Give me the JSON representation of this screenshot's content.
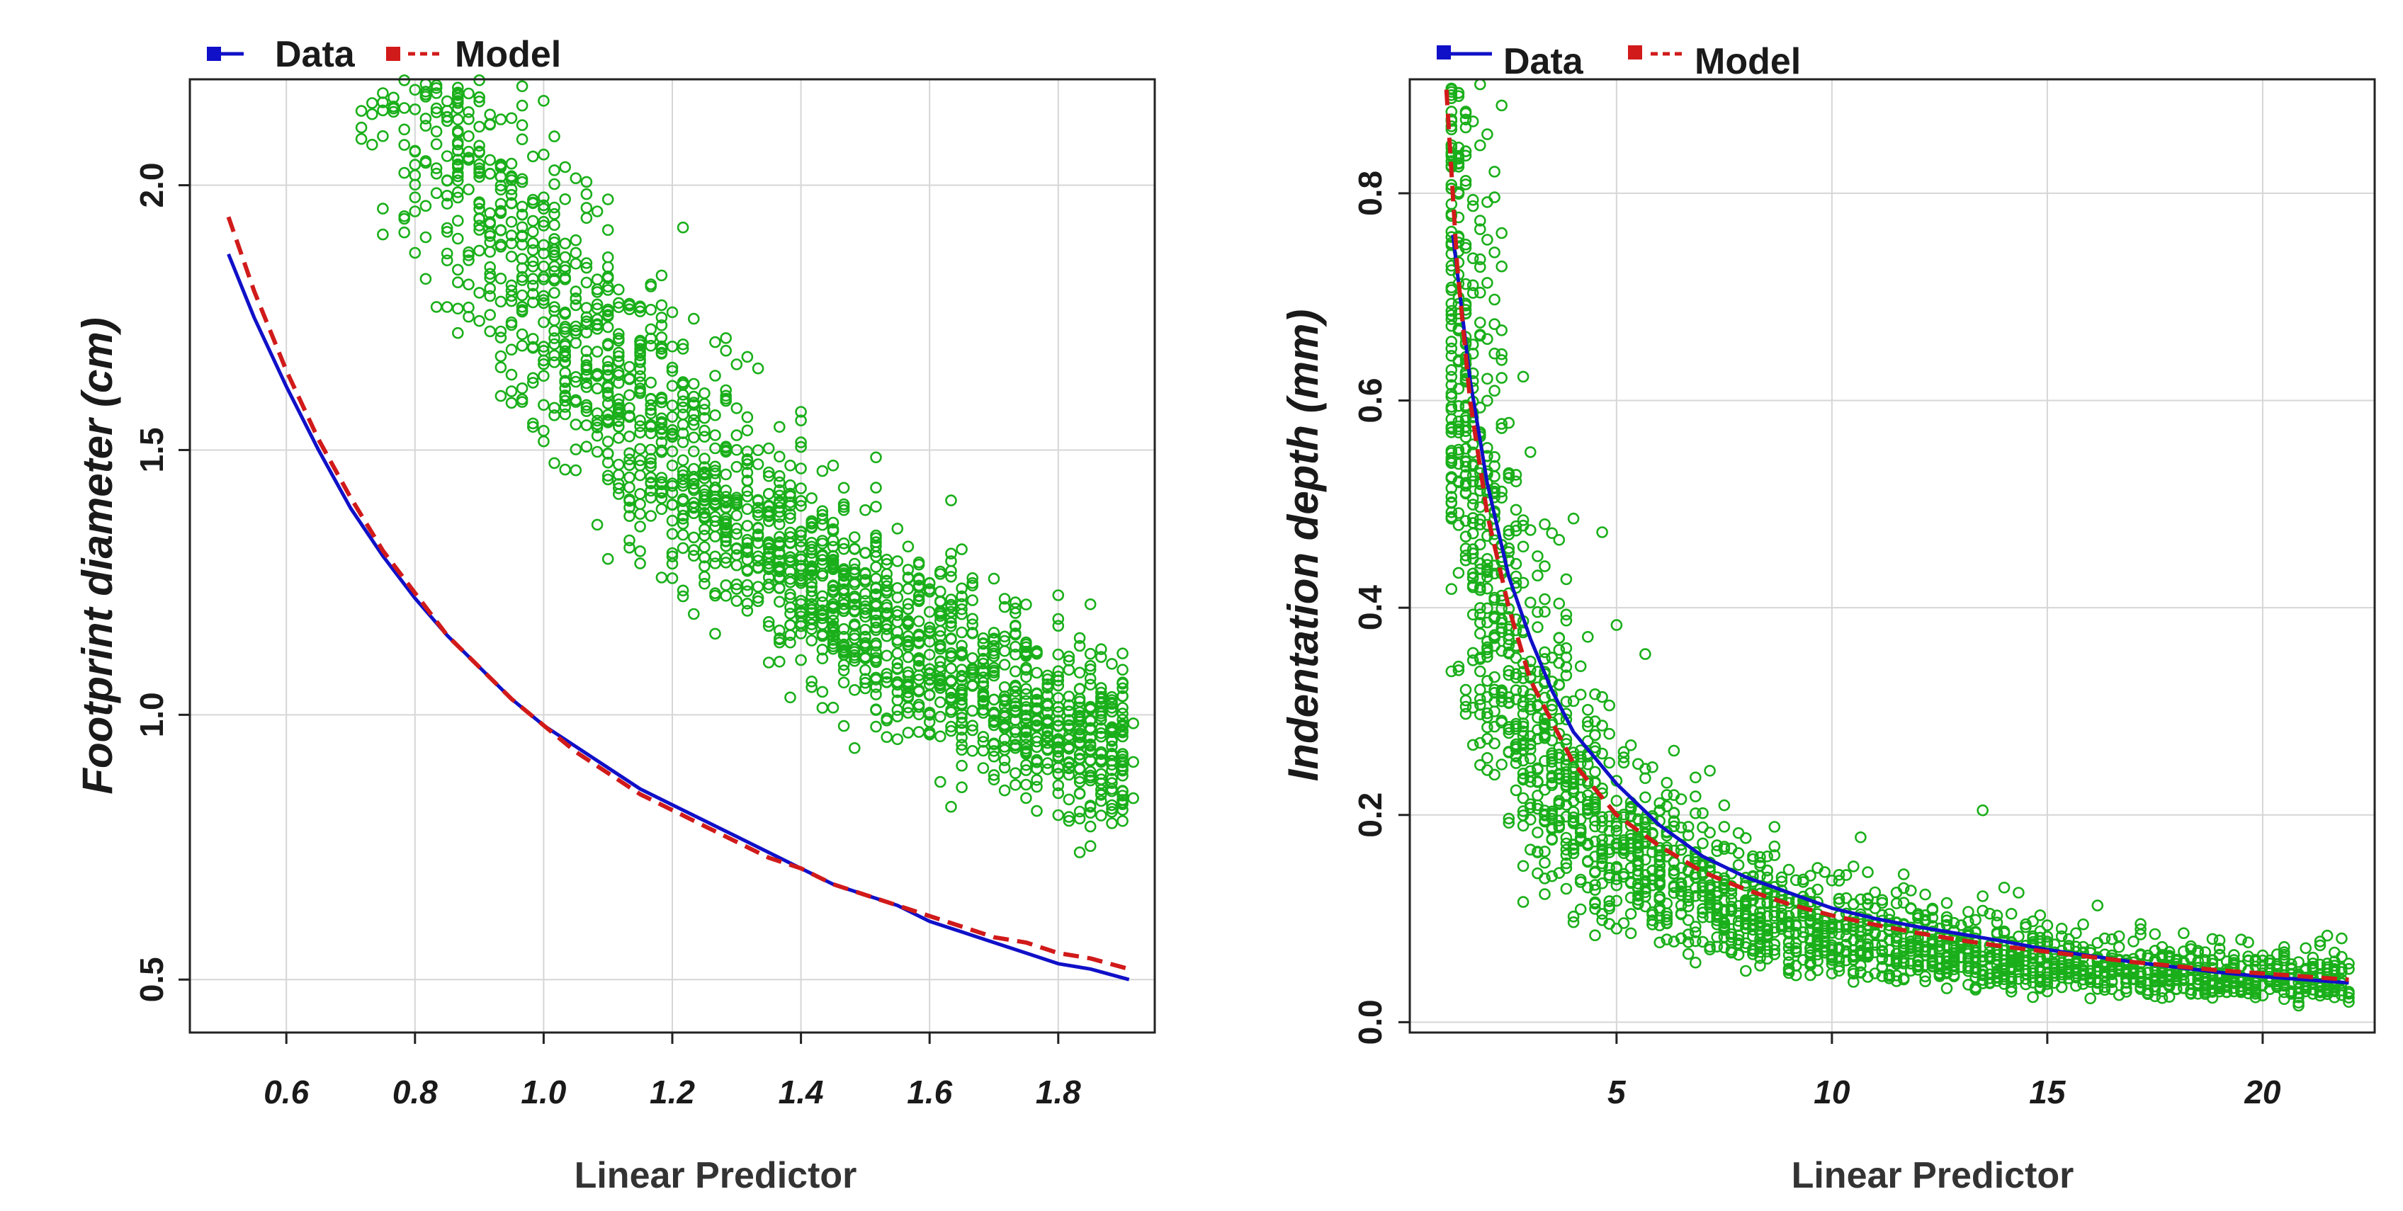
{
  "chart_data": [
    {
      "type": "scatter",
      "title": "",
      "xlabel": "Linear Predictor",
      "ylabel": "Footprint diameter (cm)",
      "xlim": [
        0.45,
        1.95
      ],
      "ylim": [
        0.4,
        2.2
      ],
      "xticks": [
        0.6,
        0.8,
        1.0,
        1.2,
        1.4,
        1.6,
        1.8
      ],
      "xtick_labels": [
        "0.6",
        "0.8",
        "1.0",
        "1.2",
        "1.4",
        "1.6",
        "1.8"
      ],
      "yticks": [
        0.5,
        1.0,
        1.5,
        2.0
      ],
      "ytick_labels": [
        "0.5",
        "1.0",
        "1.5",
        "2.0"
      ],
      "grid": true,
      "legend": {
        "position": "top-left",
        "entries": [
          {
            "label": "Data",
            "color": "#1010c8",
            "style": "solid"
          },
          {
            "label": "Model",
            "color": "#d11a1a",
            "style": "dashed"
          }
        ]
      },
      "scatter_color": "#1aaf1a",
      "scatter_x_range": [
        0.51,
        1.91
      ],
      "scatter_y_scale": 1.8,
      "scatter_y_exponent": 1.03,
      "scatter_y_spread": 0.085,
      "scatter_count": 2400,
      "series": [
        {
          "name": "Data",
          "color": "#1010c8",
          "style": "solid",
          "x": [
            0.51,
            0.55,
            0.6,
            0.65,
            0.7,
            0.75,
            0.8,
            0.85,
            0.9,
            0.95,
            1.0,
            1.05,
            1.1,
            1.15,
            1.2,
            1.25,
            1.3,
            1.35,
            1.4,
            1.45,
            1.5,
            1.55,
            1.6,
            1.65,
            1.7,
            1.75,
            1.8,
            1.85,
            1.91
          ],
          "y": [
            1.87,
            1.75,
            1.62,
            1.5,
            1.39,
            1.3,
            1.22,
            1.15,
            1.09,
            1.03,
            0.98,
            0.94,
            0.9,
            0.86,
            0.83,
            0.8,
            0.77,
            0.74,
            0.71,
            0.68,
            0.66,
            0.64,
            0.61,
            0.59,
            0.57,
            0.55,
            0.53,
            0.52,
            0.5
          ]
        },
        {
          "name": "Model",
          "color": "#d11a1a",
          "style": "dashed",
          "x": [
            0.51,
            0.55,
            0.6,
            0.65,
            0.7,
            0.75,
            0.8,
            0.85,
            0.9,
            0.95,
            1.0,
            1.05,
            1.1,
            1.15,
            1.2,
            1.25,
            1.3,
            1.35,
            1.4,
            1.45,
            1.5,
            1.55,
            1.6,
            1.65,
            1.7,
            1.75,
            1.8,
            1.85,
            1.91
          ],
          "y": [
            1.94,
            1.8,
            1.65,
            1.52,
            1.41,
            1.31,
            1.23,
            1.15,
            1.09,
            1.03,
            0.98,
            0.93,
            0.89,
            0.85,
            0.82,
            0.79,
            0.76,
            0.73,
            0.71,
            0.68,
            0.66,
            0.64,
            0.62,
            0.6,
            0.58,
            0.57,
            0.55,
            0.54,
            0.52
          ]
        }
      ]
    },
    {
      "type": "scatter",
      "title": "",
      "xlabel": "Linear Predictor",
      "ylabel": "Indentation depth (mm)",
      "xlim": [
        0.2,
        22.6
      ],
      "ylim": [
        -0.01,
        0.91
      ],
      "xticks": [
        5,
        10,
        15,
        20
      ],
      "xtick_labels": [
        "5",
        "10",
        "15",
        "20"
      ],
      "yticks": [
        0.0,
        0.2,
        0.4,
        0.6,
        0.8
      ],
      "ytick_labels": [
        "0.0",
        "0.2",
        "0.4",
        "0.6",
        "0.8"
      ],
      "grid": true,
      "legend": {
        "position": "top-left",
        "entries": [
          {
            "label": "Data",
            "color": "#1010c8",
            "style": "solid"
          },
          {
            "label": "Model",
            "color": "#d11a1a",
            "style": "dashed"
          }
        ]
      },
      "scatter_color": "#1aaf1a",
      "scatter_x_range": [
        1.1,
        22
      ],
      "scatter_y_scale": 0.96,
      "scatter_y_exponent": 1.05,
      "scatter_y_spread": 0.3,
      "scatter_count": 2400,
      "series": [
        {
          "name": "Data",
          "color": "#1010c8",
          "style": "solid",
          "x": [
            1.2,
            1.6,
            2,
            2.5,
            3,
            3.5,
            4,
            5,
            6,
            7,
            8,
            9,
            10,
            11,
            12,
            13,
            14,
            15,
            16,
            17,
            18,
            19,
            20,
            21,
            22
          ],
          "y": [
            0.76,
            0.62,
            0.52,
            0.43,
            0.37,
            0.32,
            0.28,
            0.23,
            0.19,
            0.16,
            0.14,
            0.125,
            0.11,
            0.1,
            0.092,
            0.085,
            0.078,
            0.07,
            0.064,
            0.058,
            0.053,
            0.048,
            0.044,
            0.041,
            0.038
          ]
        },
        {
          "name": "Model",
          "color": "#d11a1a",
          "style": "dashed",
          "x": [
            1.05,
            1.3,
            1.6,
            2,
            2.5,
            3,
            3.5,
            4,
            5,
            6,
            7,
            8,
            9,
            10,
            11,
            12,
            13,
            14,
            15,
            16,
            17,
            18,
            19,
            20,
            21,
            22
          ],
          "y": [
            0.9,
            0.73,
            0.6,
            0.49,
            0.4,
            0.33,
            0.29,
            0.25,
            0.2,
            0.17,
            0.145,
            0.128,
            0.114,
            0.103,
            0.094,
            0.086,
            0.079,
            0.073,
            0.068,
            0.063,
            0.058,
            0.054,
            0.05,
            0.047,
            0.044,
            0.041
          ]
        }
      ]
    }
  ]
}
